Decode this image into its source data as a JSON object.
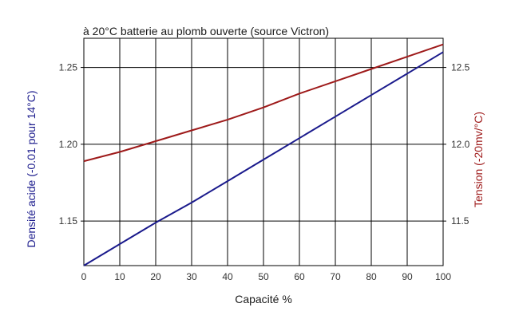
{
  "chart_data": {
    "type": "line",
    "title": "à 20°C batterie au plomb ouverte (source Victron)",
    "xlabel": "Capacité %",
    "ylabel_left": "Densité acide (-0.01 pour 14°C)",
    "ylabel_right": "Tension (-20mv/°C)",
    "x_ticks": [
      "0",
      "10",
      "20",
      "30",
      "40",
      "50",
      "60",
      "70",
      "80",
      "90",
      "100"
    ],
    "y_left_ticks": [
      "1.25",
      "1.20",
      "1.15"
    ],
    "y_right_ticks": [
      "12.5",
      "12.0",
      "11.5"
    ],
    "xlim": [
      0,
      100
    ],
    "ylim_left": [
      1.121,
      1.269
    ],
    "ylim_right": [
      11.21,
      12.69
    ],
    "grid": true,
    "series": [
      {
        "axis": "left",
        "color": "#1a1a8c",
        "x": [
          0,
          10,
          20,
          30,
          40,
          50,
          60,
          70,
          80,
          90,
          100
        ],
        "values": [
          1.121,
          1.135,
          1.149,
          1.162,
          1.176,
          1.19,
          1.204,
          1.218,
          1.232,
          1.246,
          1.26
        ]
      },
      {
        "axis": "right",
        "color": "#9e1a1a",
        "x": [
          0,
          10,
          20,
          30,
          40,
          50,
          60,
          70,
          80,
          90,
          100
        ],
        "values": [
          11.89,
          11.95,
          12.02,
          12.09,
          12.16,
          12.24,
          12.33,
          12.41,
          12.49,
          12.57,
          12.65
        ]
      }
    ]
  },
  "colors": {
    "left_axis_title": "#1a1a8c",
    "right_axis_title": "#9e1a1a",
    "right_tick_text": "#9e1a1a",
    "grid": "#000000"
  }
}
